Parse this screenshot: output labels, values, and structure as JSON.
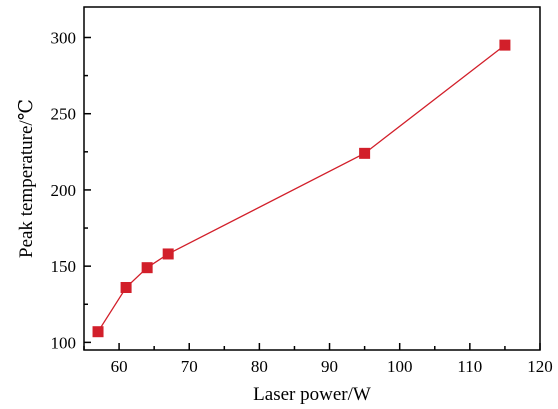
{
  "chart_data": {
    "type": "line",
    "title": "",
    "xlabel": "Laser power/W",
    "ylabel": "Peak temperature/℃",
    "xlim": [
      55,
      120
    ],
    "ylim": [
      95,
      320
    ],
    "xticks": [
      60,
      70,
      80,
      90,
      100,
      110,
      120
    ],
    "yticks": [
      100,
      150,
      200,
      250,
      300
    ],
    "grid": false,
    "legend": "none",
    "colors": {
      "series": "#d21f2a",
      "axis": "#000000"
    },
    "series": [
      {
        "marker": "square",
        "x": [
          57,
          61,
          64,
          67,
          95,
          115
        ],
        "y": [
          107,
          136,
          149,
          158,
          224,
          295
        ]
      }
    ]
  }
}
